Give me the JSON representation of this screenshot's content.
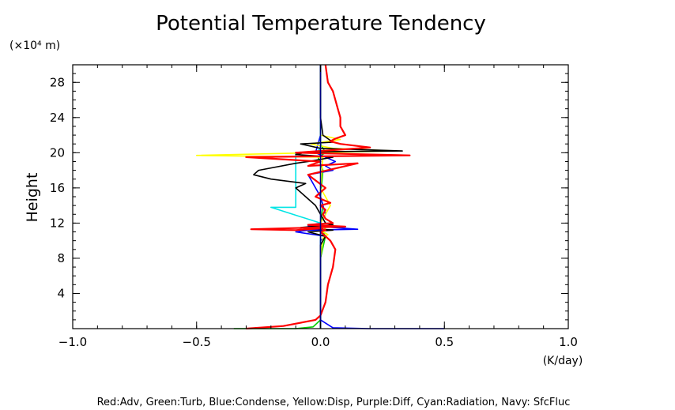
{
  "chart_data": {
    "type": "line",
    "title": "Potential Temperature Tendency",
    "xlabel": "(K/day)",
    "ylabel": "Height",
    "yunit": "(×10⁴ m)",
    "xlim": [
      -1.0,
      1.0
    ],
    "ylim": [
      0,
      30
    ],
    "xticks": [
      -1.0,
      -0.5,
      0.0,
      0.5,
      1.0
    ],
    "xtick_labels": [
      "−1.0",
      "−0.5",
      "0.0",
      "0.5",
      "1.0"
    ],
    "yticks": [
      4,
      8,
      12,
      16,
      20,
      24,
      28
    ],
    "ytick_labels": [
      "4",
      "8",
      "12",
      "16",
      "20",
      "24",
      "28"
    ],
    "grid": false,
    "legend_text": "Red:Adv, Green:Turb, Blue:Condense, Yellow:Disp, Purple:Diff, Cyan:Radiation, Navy: SfcFluc",
    "series": [
      {
        "color": "#00cc00",
        "x": [
          -0.35,
          -0.1,
          -0.03,
          0,
          0,
          0,
          0.02,
          0.01,
          0.02,
          0,
          0.01,
          0,
          0.01,
          -0.01,
          0.02,
          0,
          0,
          0,
          0,
          0
        ],
        "y": [
          0,
          0,
          0.2,
          1,
          4,
          8,
          10.5,
          11,
          11.5,
          12,
          14,
          15,
          18,
          19.5,
          20,
          21,
          22,
          24,
          28,
          30
        ]
      },
      {
        "color": "#0000ff",
        "x": [
          0.5,
          0.2,
          0.05,
          0,
          0,
          0,
          0,
          0.02,
          -0.1,
          -0.05,
          0.15,
          -0.05,
          0,
          0.02,
          0,
          -0.05,
          0.05,
          0.02,
          0.06,
          -0.02,
          0,
          0,
          0
        ],
        "y": [
          0,
          0,
          0.1,
          1,
          4,
          8,
          10,
          10.5,
          11,
          11.2,
          11.3,
          11.7,
          12,
          13,
          15,
          17.5,
          18,
          18.5,
          19,
          20,
          22,
          25,
          30
        ]
      },
      {
        "color": "#ffff00",
        "x": [
          0,
          0,
          0,
          0.01,
          0.03,
          0.01,
          0.02,
          0,
          0.04,
          0,
          0.01,
          -0.5,
          0.3,
          0.05,
          -0.04,
          0.08,
          0,
          0,
          0,
          0
        ],
        "y": [
          0,
          4,
          8,
          10.3,
          10.7,
          11,
          11.5,
          12,
          14,
          16,
          19.5,
          19.7,
          20.2,
          20.5,
          21,
          21.5,
          22,
          24,
          28,
          30
        ]
      },
      {
        "color": "#00e5e5",
        "x": [
          0,
          0,
          0,
          -0.2,
          -0.1,
          -0.1,
          -0.02,
          0,
          0,
          0
        ],
        "y": [
          0,
          8,
          12,
          13.8,
          13.8,
          20,
          20,
          20.5,
          24,
          30
        ]
      },
      {
        "color": "#000000",
        "x": [
          0,
          0,
          0,
          0.02,
          -0.05,
          0.05,
          -0.08,
          0.05,
          0.02,
          0,
          -0.02,
          -0.06,
          -0.1,
          -0.06,
          -0.2,
          -0.27,
          -0.25,
          -0.1,
          -0.05,
          0.05,
          -0.1,
          -0.05,
          0.33,
          0,
          -0.08,
          0.05,
          0.01,
          0,
          0
        ],
        "y": [
          0,
          4,
          9.5,
          10.5,
          11,
          11.2,
          11.5,
          11.8,
          12,
          13,
          14,
          15,
          16,
          16.5,
          17,
          17.5,
          18,
          18.8,
          19,
          19.5,
          19.8,
          20.1,
          20.2,
          20.5,
          21,
          21.2,
          22,
          24,
          30
        ]
      },
      {
        "color": "#ff0000",
        "x": [
          -0.3,
          -0.15,
          -0.02,
          0,
          0.02,
          0.03,
          0.05,
          0.06,
          0.04,
          0.02,
          0,
          0.02,
          0,
          -0.1,
          -0.28,
          0.1,
          -0.05,
          0.05,
          0.02,
          0.01,
          0.02,
          0,
          0.04,
          -0.02,
          0.02,
          -0.05,
          0.15,
          -0.05,
          0,
          -0.3,
          0.36,
          -0.1,
          0.05,
          0.2,
          0.08,
          0.04,
          0.06,
          0.1,
          0.08,
          0.08,
          0.07,
          0.06,
          0.05,
          0.03,
          0.02
        ],
        "y": [
          0,
          0.3,
          1,
          1.5,
          3,
          5,
          7,
          9,
          10,
          10.5,
          11,
          11.2,
          11.4,
          11.2,
          11.3,
          11.6,
          11.8,
          12,
          12.5,
          13,
          13.5,
          14,
          14.3,
          15,
          16,
          17.5,
          18.8,
          18.5,
          19,
          19.5,
          19.7,
          20,
          20.3,
          20.6,
          21,
          21.3,
          21.6,
          22,
          23,
          24,
          25,
          26,
          27,
          28,
          30
        ]
      },
      {
        "color": "#000080",
        "x": [
          0,
          0,
          0,
          0
        ],
        "y": [
          0,
          10,
          20,
          30
        ]
      }
    ]
  }
}
